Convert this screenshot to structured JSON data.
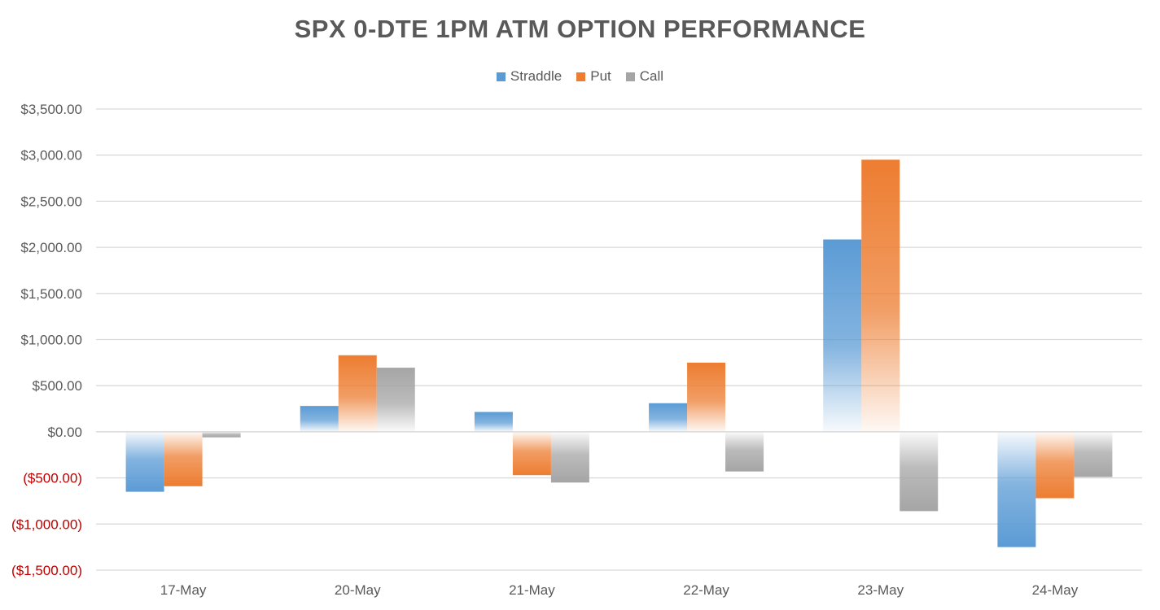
{
  "chart_data": {
    "type": "bar",
    "title": "SPX 0-DTE 1PM ATM OPTION PERFORMANCE",
    "categories": [
      "17-May",
      "20-May",
      "21-May",
      "22-May",
      "23-May",
      "24-May"
    ],
    "series": [
      {
        "name": "Straddle",
        "color": "#5B9BD5",
        "values": [
          -650,
          280,
          215,
          310,
          2085,
          -1250
        ]
      },
      {
        "name": "Put",
        "color": "#ED7D31",
        "values": [
          -590,
          830,
          -470,
          750,
          2950,
          -720
        ]
      },
      {
        "name": "Call",
        "color": "#A5A5A5",
        "values": [
          -60,
          695,
          -550,
          -430,
          -860,
          -490
        ]
      }
    ],
    "ylim": [
      -1500,
      3500
    ],
    "yticks": [
      3500,
      3000,
      2500,
      2000,
      1500,
      1000,
      500,
      0,
      -500,
      -1000,
      -1500
    ],
    "ytick_labels": [
      "$3,500.00",
      "$3,000.00",
      "$2,500.00",
      "$2,000.00",
      "$1,500.00",
      "$1,000.00",
      "$500.00",
      "$0.00",
      "($500.00)",
      "($1,000.00)",
      "($1,500.00)"
    ],
    "negative_label_color": "#C00000",
    "positive_label_color": "#595959",
    "grid": true,
    "legend_position": "top",
    "xlabel": "",
    "ylabel": ""
  }
}
